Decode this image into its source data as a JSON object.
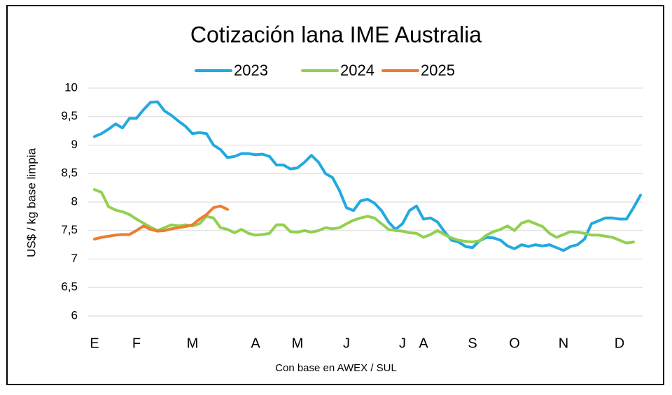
{
  "chart_data": {
    "type": "line",
    "title": "Cotización lana IME Australia",
    "ylabel": "US$ / kg base limpia",
    "xlabel": "Con base en AWEX / SUL",
    "categories": [
      "E",
      null,
      null,
      null,
      null,
      null,
      "F",
      null,
      null,
      null,
      null,
      null,
      null,
      null,
      "M",
      null,
      null,
      null,
      null,
      null,
      null,
      null,
      null,
      "A",
      null,
      null,
      null,
      null,
      null,
      "M",
      null,
      null,
      null,
      null,
      null,
      null,
      "J",
      null,
      null,
      null,
      null,
      null,
      null,
      null,
      "J",
      null,
      null,
      "A",
      null,
      null,
      null,
      null,
      null,
      null,
      "S",
      null,
      null,
      null,
      null,
      null,
      "O",
      null,
      null,
      null,
      null,
      null,
      null,
      "N",
      null,
      null,
      null,
      null,
      null,
      null,
      null,
      "D",
      null,
      null,
      null
    ],
    "series": [
      {
        "name": "2023",
        "color": "#22a9e0",
        "values": [
          9.15,
          9.2,
          9.28,
          9.37,
          9.3,
          9.47,
          9.47,
          9.62,
          9.75,
          9.76,
          9.6,
          9.52,
          9.42,
          9.33,
          9.2,
          9.22,
          9.2,
          9.0,
          8.92,
          8.78,
          8.8,
          8.85,
          8.85,
          8.83,
          8.84,
          8.8,
          8.65,
          8.65,
          8.58,
          8.6,
          8.7,
          8.82,
          8.7,
          8.5,
          8.43,
          8.2,
          7.9,
          7.85,
          8.02,
          8.05,
          7.98,
          7.85,
          7.65,
          7.52,
          7.62,
          7.85,
          7.93,
          7.7,
          7.72,
          7.65,
          7.48,
          7.33,
          7.3,
          7.22,
          7.2,
          7.32,
          7.38,
          7.37,
          7.33,
          7.23,
          7.18,
          7.25,
          7.22,
          7.25,
          7.23,
          7.25,
          7.2,
          7.15,
          7.22,
          7.25,
          7.35,
          7.62,
          7.67,
          7.72,
          7.72,
          7.7,
          7.7,
          7.9,
          8.12
        ]
      },
      {
        "name": "2024",
        "color": "#92d050",
        "values": [
          8.22,
          8.17,
          7.92,
          7.86,
          7.83,
          7.78,
          7.7,
          7.63,
          7.56,
          7.5,
          7.55,
          7.6,
          7.58,
          7.6,
          7.58,
          7.62,
          7.75,
          7.72,
          7.55,
          7.52,
          7.46,
          7.52,
          7.45,
          7.42,
          7.43,
          7.45,
          7.6,
          7.6,
          7.48,
          7.47,
          7.5,
          7.47,
          7.5,
          7.55,
          7.53,
          7.55,
          7.62,
          7.68,
          7.72,
          7.75,
          7.72,
          7.62,
          7.52,
          7.5,
          7.49,
          7.46,
          7.45,
          7.38,
          7.43,
          7.5,
          7.43,
          7.37,
          7.33,
          7.31,
          7.3,
          7.32,
          7.42,
          7.48,
          7.52,
          7.58,
          7.5,
          7.63,
          7.67,
          7.62,
          7.57,
          7.45,
          7.38,
          7.43,
          7.48,
          7.47,
          7.45,
          7.42,
          7.42,
          7.4,
          7.38,
          7.33,
          7.28,
          7.3,
          null
        ]
      },
      {
        "name": "2025",
        "color": "#ed7d31",
        "values": [
          7.35,
          7.38,
          7.4,
          7.42,
          7.43,
          7.43,
          7.5,
          7.58,
          7.52,
          7.49,
          7.5,
          7.53,
          7.55,
          7.57,
          7.6,
          7.7,
          7.78,
          7.9,
          7.93,
          7.87,
          null,
          null,
          null,
          null,
          null,
          null,
          null,
          null,
          null,
          null,
          null,
          null,
          null,
          null,
          null,
          null,
          null,
          null,
          null,
          null,
          null,
          null,
          null,
          null,
          null,
          null,
          null,
          null,
          null,
          null,
          null,
          null,
          null,
          null,
          null,
          null,
          null,
          null,
          null,
          null,
          null,
          null,
          null,
          null,
          null,
          null,
          null,
          null,
          null,
          null,
          null,
          null,
          null,
          null,
          null,
          null,
          null,
          null,
          null
        ]
      }
    ],
    "ylim": [
      6,
      10
    ],
    "yticks": [
      6,
      {
        "value": 6.5,
        "label": "6,5"
      },
      7,
      {
        "value": 7.5,
        "label": "7,5"
      },
      8,
      {
        "value": 8.5,
        "label": "8,5"
      },
      9,
      {
        "value": 9.5,
        "label": "9,5"
      },
      10
    ],
    "grid": true,
    "legend": "top"
  }
}
